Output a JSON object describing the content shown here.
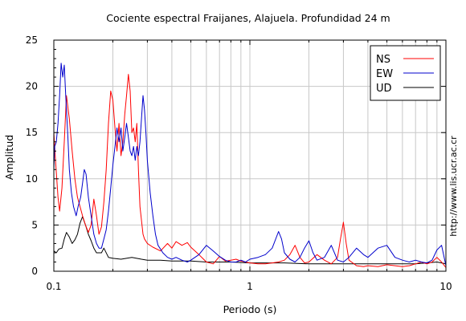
{
  "chart_data": {
    "type": "line",
    "title": "Cociente espectral Fraijanes, Alajuela. Profundidad 24 m",
    "xlabel": "Periodo (s)",
    "ylabel": "Amplitud",
    "x_scale": "log",
    "xlim": [
      0.1,
      10
    ],
    "ylim": [
      0,
      25
    ],
    "x_ticks": [
      "0.1",
      "1",
      "10"
    ],
    "y_ticks": [
      "0",
      "5",
      "10",
      "15",
      "20",
      "25"
    ],
    "grid": true,
    "legend_position": "top-right",
    "watermark": "http://www.lis.ucr.ac.cr",
    "colors": {
      "NS": "#ff0000",
      "EW": "#0000cc",
      "UD": "#000000"
    },
    "series": [
      {
        "name": "NS",
        "color": "#ff0000",
        "points": [
          [
            0.1,
            15.0
          ],
          [
            0.102,
            12.0
          ],
          [
            0.105,
            8.0
          ],
          [
            0.107,
            6.5
          ],
          [
            0.11,
            9.0
          ],
          [
            0.113,
            14.0
          ],
          [
            0.116,
            19.0
          ],
          [
            0.12,
            16.5
          ],
          [
            0.124,
            13.0
          ],
          [
            0.128,
            10.0
          ],
          [
            0.132,
            8.0
          ],
          [
            0.136,
            7.0
          ],
          [
            0.14,
            6.0
          ],
          [
            0.145,
            5.0
          ],
          [
            0.15,
            4.2
          ],
          [
            0.155,
            5.0
          ],
          [
            0.16,
            7.8
          ],
          [
            0.165,
            6.0
          ],
          [
            0.17,
            4.0
          ],
          [
            0.175,
            4.8
          ],
          [
            0.18,
            7.5
          ],
          [
            0.185,
            11.0
          ],
          [
            0.19,
            16.0
          ],
          [
            0.195,
            19.5
          ],
          [
            0.2,
            18.5
          ],
          [
            0.205,
            15.5
          ],
          [
            0.21,
            13.0
          ],
          [
            0.215,
            16.0
          ],
          [
            0.22,
            12.5
          ],
          [
            0.225,
            14.0
          ],
          [
            0.23,
            17.0
          ],
          [
            0.235,
            19.0
          ],
          [
            0.24,
            21.3
          ],
          [
            0.245,
            19.5
          ],
          [
            0.25,
            15.0
          ],
          [
            0.255,
            15.5
          ],
          [
            0.26,
            14.0
          ],
          [
            0.265,
            16.0
          ],
          [
            0.27,
            11.0
          ],
          [
            0.275,
            7.0
          ],
          [
            0.28,
            5.5
          ],
          [
            0.285,
            4.0
          ],
          [
            0.29,
            3.5
          ],
          [
            0.3,
            3.0
          ],
          [
            0.32,
            2.6
          ],
          [
            0.35,
            2.2
          ],
          [
            0.38,
            3.0
          ],
          [
            0.4,
            2.5
          ],
          [
            0.42,
            3.2
          ],
          [
            0.45,
            2.8
          ],
          [
            0.48,
            3.1
          ],
          [
            0.5,
            2.6
          ],
          [
            0.55,
            1.8
          ],
          [
            0.6,
            1.0
          ],
          [
            0.65,
            0.8
          ],
          [
            0.7,
            1.6
          ],
          [
            0.75,
            1.1
          ],
          [
            0.8,
            1.2
          ],
          [
            0.85,
            1.3
          ],
          [
            0.9,
            1.1
          ],
          [
            0.95,
            1.0
          ],
          [
            1.0,
            0.9
          ],
          [
            1.1,
            0.8
          ],
          [
            1.2,
            0.8
          ],
          [
            1.3,
            0.9
          ],
          [
            1.4,
            1.0
          ],
          [
            1.5,
            1.2
          ],
          [
            1.6,
            1.8
          ],
          [
            1.7,
            2.8
          ],
          [
            1.8,
            1.5
          ],
          [
            1.9,
            0.9
          ],
          [
            2.0,
            1.0
          ],
          [
            2.2,
            1.8
          ],
          [
            2.4,
            1.2
          ],
          [
            2.6,
            0.8
          ],
          [
            2.8,
            1.5
          ],
          [
            2.9,
            3.5
          ],
          [
            3.0,
            5.3
          ],
          [
            3.1,
            3.0
          ],
          [
            3.2,
            1.2
          ],
          [
            3.5,
            0.6
          ],
          [
            3.8,
            0.5
          ],
          [
            4.0,
            0.6
          ],
          [
            4.5,
            0.5
          ],
          [
            5.0,
            0.7
          ],
          [
            5.5,
            0.6
          ],
          [
            6.0,
            0.5
          ],
          [
            6.5,
            0.6
          ],
          [
            7.0,
            0.8
          ],
          [
            7.5,
            1.0
          ],
          [
            8.0,
            0.8
          ],
          [
            8.5,
            1.0
          ],
          [
            9.0,
            1.5
          ],
          [
            9.5,
            1.0
          ],
          [
            10.0,
            0.4
          ]
        ]
      },
      {
        "name": "EW",
        "color": "#0000cc",
        "points": [
          [
            0.1,
            11.0
          ],
          [
            0.101,
            13.5
          ],
          [
            0.103,
            14.0
          ],
          [
            0.105,
            16.0
          ],
          [
            0.107,
            19.0
          ],
          [
            0.109,
            22.5
          ],
          [
            0.111,
            21.0
          ],
          [
            0.113,
            22.3
          ],
          [
            0.115,
            19.0
          ],
          [
            0.118,
            14.5
          ],
          [
            0.12,
            11.0
          ],
          [
            0.123,
            8.5
          ],
          [
            0.126,
            7.0
          ],
          [
            0.13,
            6.0
          ],
          [
            0.133,
            7.0
          ],
          [
            0.137,
            8.0
          ],
          [
            0.14,
            9.5
          ],
          [
            0.143,
            11.0
          ],
          [
            0.146,
            10.5
          ],
          [
            0.15,
            8.0
          ],
          [
            0.155,
            6.0
          ],
          [
            0.16,
            4.0
          ],
          [
            0.165,
            3.0
          ],
          [
            0.17,
            2.5
          ],
          [
            0.175,
            2.5
          ],
          [
            0.18,
            3.5
          ],
          [
            0.185,
            4.5
          ],
          [
            0.19,
            6.5
          ],
          [
            0.195,
            9.0
          ],
          [
            0.2,
            11.5
          ],
          [
            0.205,
            13.5
          ],
          [
            0.21,
            15.5
          ],
          [
            0.215,
            14.0
          ],
          [
            0.22,
            15.5
          ],
          [
            0.225,
            13.0
          ],
          [
            0.23,
            14.5
          ],
          [
            0.235,
            16.0
          ],
          [
            0.24,
            14.5
          ],
          [
            0.245,
            13.0
          ],
          [
            0.25,
            12.5
          ],
          [
            0.255,
            13.5
          ],
          [
            0.26,
            12.0
          ],
          [
            0.265,
            13.5
          ],
          [
            0.27,
            12.5
          ],
          [
            0.275,
            14.0
          ],
          [
            0.28,
            16.5
          ],
          [
            0.285,
            19.0
          ],
          [
            0.29,
            17.5
          ],
          [
            0.295,
            15.0
          ],
          [
            0.3,
            12.0
          ],
          [
            0.31,
            8.5
          ],
          [
            0.32,
            6.0
          ],
          [
            0.33,
            4.0
          ],
          [
            0.34,
            2.8
          ],
          [
            0.36,
            2.0
          ],
          [
            0.38,
            1.5
          ],
          [
            0.4,
            1.3
          ],
          [
            0.42,
            1.5
          ],
          [
            0.45,
            1.2
          ],
          [
            0.48,
            1.0
          ],
          [
            0.5,
            1.2
          ],
          [
            0.55,
            1.8
          ],
          [
            0.6,
            2.8
          ],
          [
            0.65,
            2.2
          ],
          [
            0.7,
            1.6
          ],
          [
            0.75,
            1.2
          ],
          [
            0.8,
            1.0
          ],
          [
            0.85,
            1.0
          ],
          [
            0.9,
            1.2
          ],
          [
            0.95,
            1.0
          ],
          [
            1.0,
            1.3
          ],
          [
            1.1,
            1.5
          ],
          [
            1.2,
            1.8
          ],
          [
            1.3,
            2.5
          ],
          [
            1.4,
            4.3
          ],
          [
            1.45,
            3.5
          ],
          [
            1.5,
            2.0
          ],
          [
            1.6,
            1.3
          ],
          [
            1.7,
            1.0
          ],
          [
            1.8,
            1.5
          ],
          [
            1.9,
            2.5
          ],
          [
            2.0,
            3.3
          ],
          [
            2.1,
            2.0
          ],
          [
            2.2,
            1.2
          ],
          [
            2.4,
            1.5
          ],
          [
            2.6,
            2.8
          ],
          [
            2.8,
            1.2
          ],
          [
            3.0,
            1.0
          ],
          [
            3.2,
            1.5
          ],
          [
            3.5,
            2.5
          ],
          [
            3.8,
            1.8
          ],
          [
            4.0,
            1.5
          ],
          [
            4.5,
            2.5
          ],
          [
            5.0,
            2.8
          ],
          [
            5.5,
            1.5
          ],
          [
            6.0,
            1.2
          ],
          [
            6.5,
            1.0
          ],
          [
            7.0,
            1.2
          ],
          [
            7.5,
            1.0
          ],
          [
            8.0,
            0.9
          ],
          [
            8.5,
            1.2
          ],
          [
            9.0,
            2.3
          ],
          [
            9.5,
            2.8
          ],
          [
            10.0,
            0.6
          ]
        ]
      },
      {
        "name": "UD",
        "color": "#000000",
        "points": [
          [
            0.1,
            2.2
          ],
          [
            0.103,
            2.0
          ],
          [
            0.106,
            2.4
          ],
          [
            0.11,
            2.5
          ],
          [
            0.113,
            3.5
          ],
          [
            0.116,
            4.2
          ],
          [
            0.12,
            3.7
          ],
          [
            0.124,
            3.0
          ],
          [
            0.128,
            3.4
          ],
          [
            0.132,
            4.0
          ],
          [
            0.136,
            5.2
          ],
          [
            0.14,
            5.9
          ],
          [
            0.145,
            5.0
          ],
          [
            0.15,
            4.0
          ],
          [
            0.155,
            3.3
          ],
          [
            0.16,
            2.5
          ],
          [
            0.165,
            2.0
          ],
          [
            0.17,
            2.0
          ],
          [
            0.175,
            2.0
          ],
          [
            0.18,
            2.5
          ],
          [
            0.19,
            1.5
          ],
          [
            0.2,
            1.4
          ],
          [
            0.22,
            1.3
          ],
          [
            0.25,
            1.5
          ],
          [
            0.28,
            1.3
          ],
          [
            0.3,
            1.2
          ],
          [
            0.35,
            1.2
          ],
          [
            0.4,
            1.1
          ],
          [
            0.5,
            1.1
          ],
          [
            0.6,
            1.0
          ],
          [
            0.8,
            1.0
          ],
          [
            1.0,
            0.9
          ],
          [
            1.5,
            0.9
          ],
          [
            2.0,
            0.8
          ],
          [
            3.0,
            0.8
          ],
          [
            4.0,
            0.8
          ],
          [
            5.0,
            0.8
          ],
          [
            6.0,
            0.8
          ],
          [
            7.0,
            0.8
          ],
          [
            8.0,
            0.9
          ],
          [
            9.0,
            1.0
          ],
          [
            10.0,
            0.8
          ]
        ]
      }
    ]
  }
}
